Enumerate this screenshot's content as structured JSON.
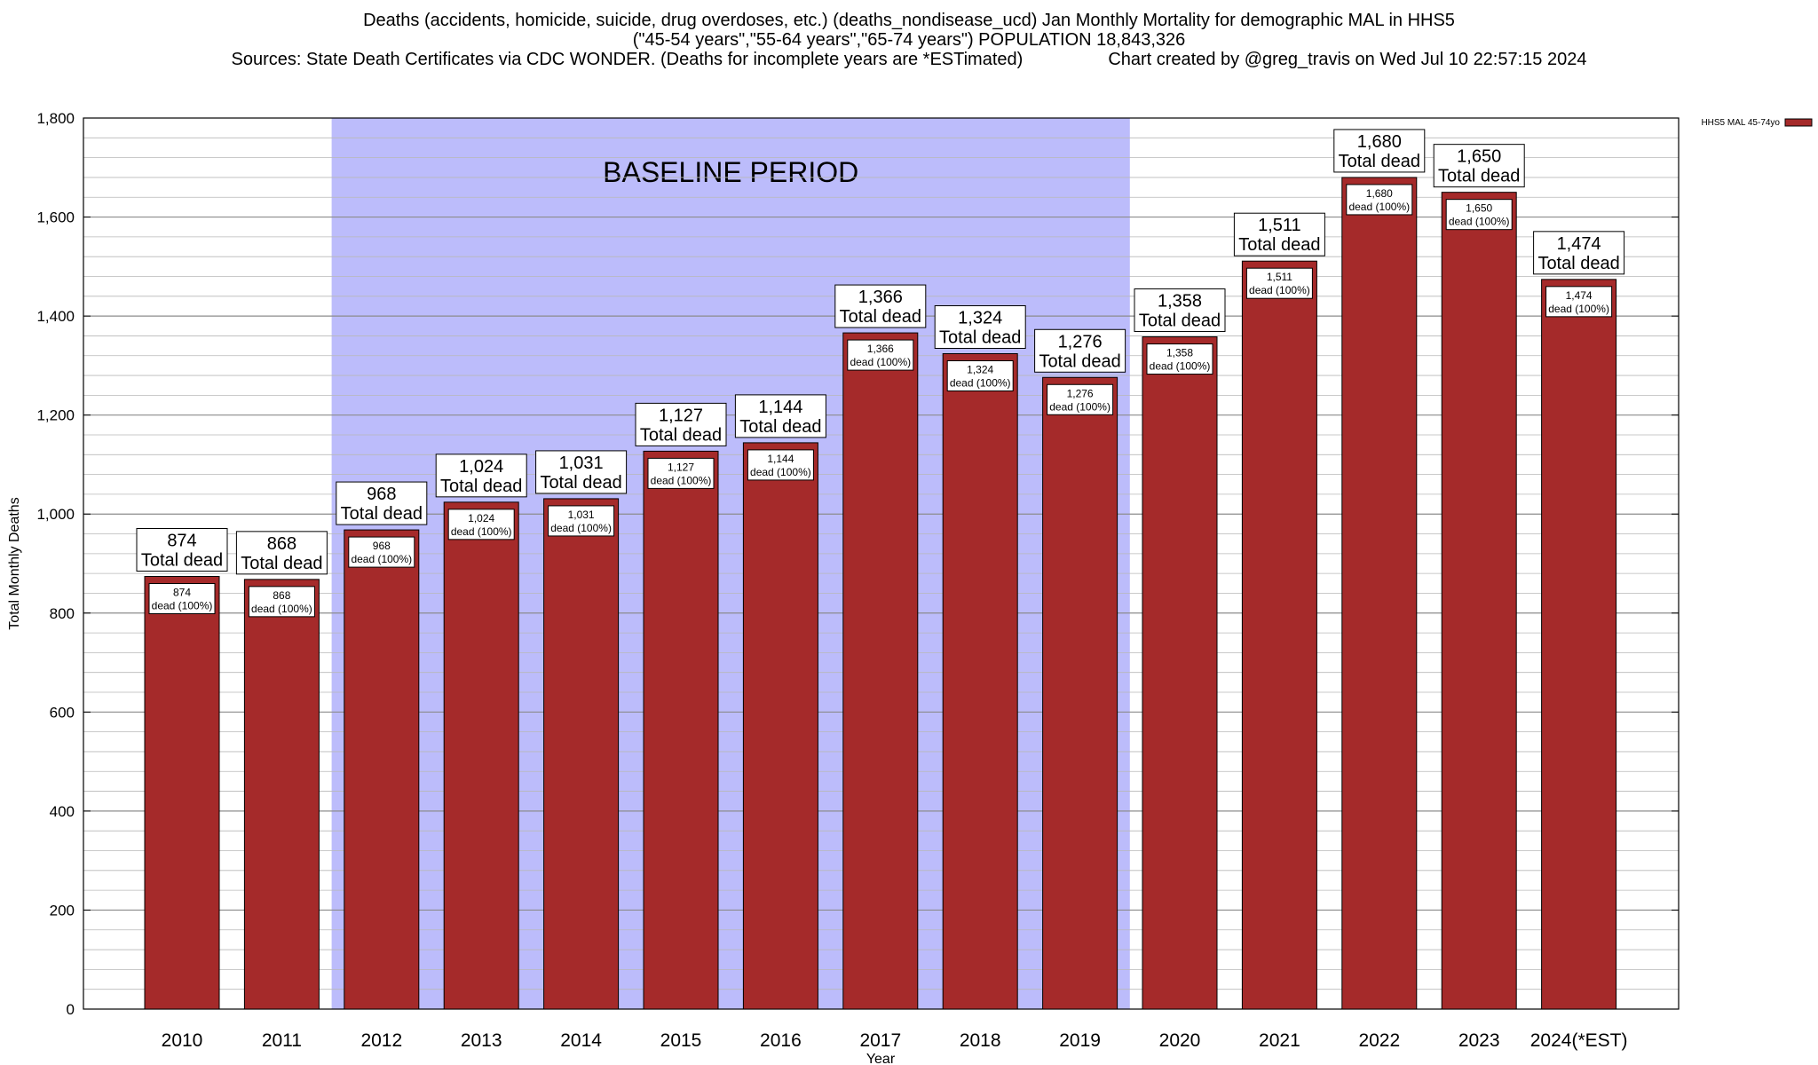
{
  "header": {
    "line1": "Deaths (accidents, homicide, suicide, drug overdoses, etc.) (deaths_nondisease_ucd) Jan Monthly Mortality for demographic MAL in HHS5",
    "line2": "(\"45-54 years\",\"55-64 years\",\"65-74 years\") POPULATION 18,843,326",
    "line3_sources": "Sources: State Death Certificates via CDC WONDER. (Deaths for incomplete years are *ESTimated)",
    "line3_credit": "Chart created by @greg_travis on Wed Jul 10 22:57:15 2024"
  },
  "chart_data": {
    "type": "bar",
    "title": "Deaths (accidents, homicide, suicide, drug overdoses, etc.) (deaths_nondisease_ucd) Jan Monthly Mortality for demographic MAL in HHS5",
    "xlabel": "Year",
    "ylabel": "Total Monthly Deaths",
    "ylim": [
      0,
      1800
    ],
    "yticks": [
      0,
      200,
      400,
      600,
      800,
      1000,
      1200,
      1400,
      1600,
      1800
    ],
    "ytick_labels": [
      "0",
      "200",
      "400",
      "600",
      "800",
      "1,000",
      "1,200",
      "1,400",
      "1,600",
      "1,800"
    ],
    "minor_grid_step": 40,
    "categories": [
      "2010",
      "2011",
      "2012",
      "2013",
      "2014",
      "2015",
      "2016",
      "2017",
      "2018",
      "2019",
      "2020",
      "2021",
      "2022",
      "2023",
      "2024(*EST)"
    ],
    "series": [
      {
        "name": "HHS5 MAL 45-74yo",
        "color": "#a52a2a",
        "values": [
          874,
          868,
          968,
          1024,
          1031,
          1127,
          1144,
          1366,
          1324,
          1276,
          1358,
          1511,
          1680,
          1650,
          1474
        ],
        "value_labels": [
          "874",
          "868",
          "968",
          "1,024",
          "1,031",
          "1,127",
          "1,144",
          "1,366",
          "1,324",
          "1,276",
          "1,358",
          "1,511",
          "1,680",
          "1,650",
          "1,474"
        ]
      }
    ],
    "total_label_suffix": "Total dead",
    "segment_label_suffix": "dead (100%)",
    "baseline": {
      "label": "BASELINE PERIOD",
      "start_category": "2012",
      "end_category": "2019",
      "color": "#bcbcfb"
    },
    "legend": {
      "position": "top-right",
      "entries": [
        "HHS5 MAL 45-74yo"
      ]
    },
    "grid": true
  }
}
